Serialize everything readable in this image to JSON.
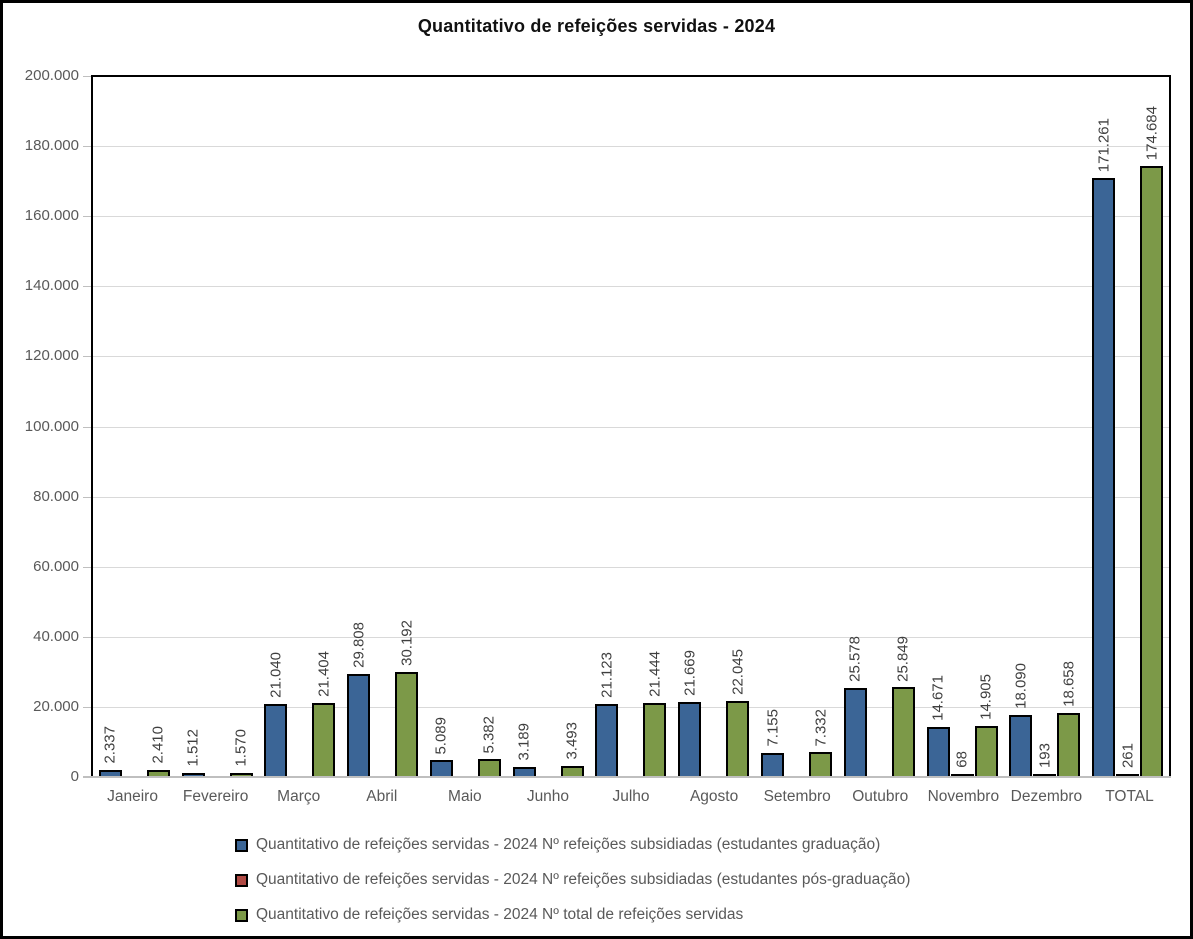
{
  "chart_data": {
    "type": "bar",
    "title": "Quantitativo de refeições servidas - 2024",
    "categories": [
      "Janeiro",
      "Fevereiro",
      "Março",
      "Abril",
      "Maio",
      "Junho",
      "Julho",
      "Agosto",
      "Setembro",
      "Outubro",
      "Novembro",
      "Dezembro",
      "TOTAL"
    ],
    "series": [
      {
        "name": "Quantitativo de refeições servidas - 2024 Nº refeições subsidiadas (estudantes graduação)",
        "color": "#3B6596",
        "values": [
          2337,
          1512,
          21040,
          29808,
          5089,
          3189,
          21123,
          21669,
          7155,
          25578,
          14671,
          18090,
          171261
        ],
        "labels": [
          "2.337",
          "1.512",
          "21.040",
          "29.808",
          "5.089",
          "3.189",
          "21.123",
          "21.669",
          "7.155",
          "25.578",
          "14.671",
          "18.090",
          "171.261"
        ]
      },
      {
        "name": "Quantitativo de refeições servidas - 2024 Nº refeições subsidiadas (estudantes pós-graduação)",
        "color": "#B04A44",
        "values": [
          null,
          null,
          null,
          null,
          null,
          null,
          null,
          null,
          null,
          null,
          68,
          193,
          261
        ],
        "labels": [
          null,
          null,
          null,
          null,
          null,
          null,
          null,
          null,
          null,
          null,
          "68",
          "193",
          "261"
        ]
      },
      {
        "name": "Quantitativo de refeições servidas - 2024 Nº total de refeições servidas",
        "color": "#7C9948",
        "values": [
          2410,
          1570,
          21404,
          30192,
          5382,
          3493,
          21444,
          22045,
          7332,
          25849,
          14905,
          18658,
          174684
        ],
        "labels": [
          "2.410",
          "1.570",
          "21.404",
          "30.192",
          "5.382",
          "3.493",
          "21.444",
          "22.045",
          "7.332",
          "25.849",
          "14.905",
          "18.658",
          "174.684"
        ]
      }
    ],
    "y_axis": {
      "min": 0,
      "max": 200000,
      "tick_step": 20000,
      "tick_labels_top_down": [
        "200.000",
        "180.000",
        "160.000",
        "140.000",
        "120.000",
        "100.000",
        "80.000",
        "60.000",
        "40.000",
        "20.000",
        "0"
      ]
    },
    "legend_position": "bottom-left",
    "grid": true,
    "bar_labels_rotation": "vertical",
    "colors": {
      "gridline": "#D9D9D9",
      "axis_line": "#BFBFBF",
      "axis_text": "#595959",
      "bar_value_text": "#3F3F3F",
      "bar_border": "#000000",
      "plot_border": "#000000"
    }
  }
}
